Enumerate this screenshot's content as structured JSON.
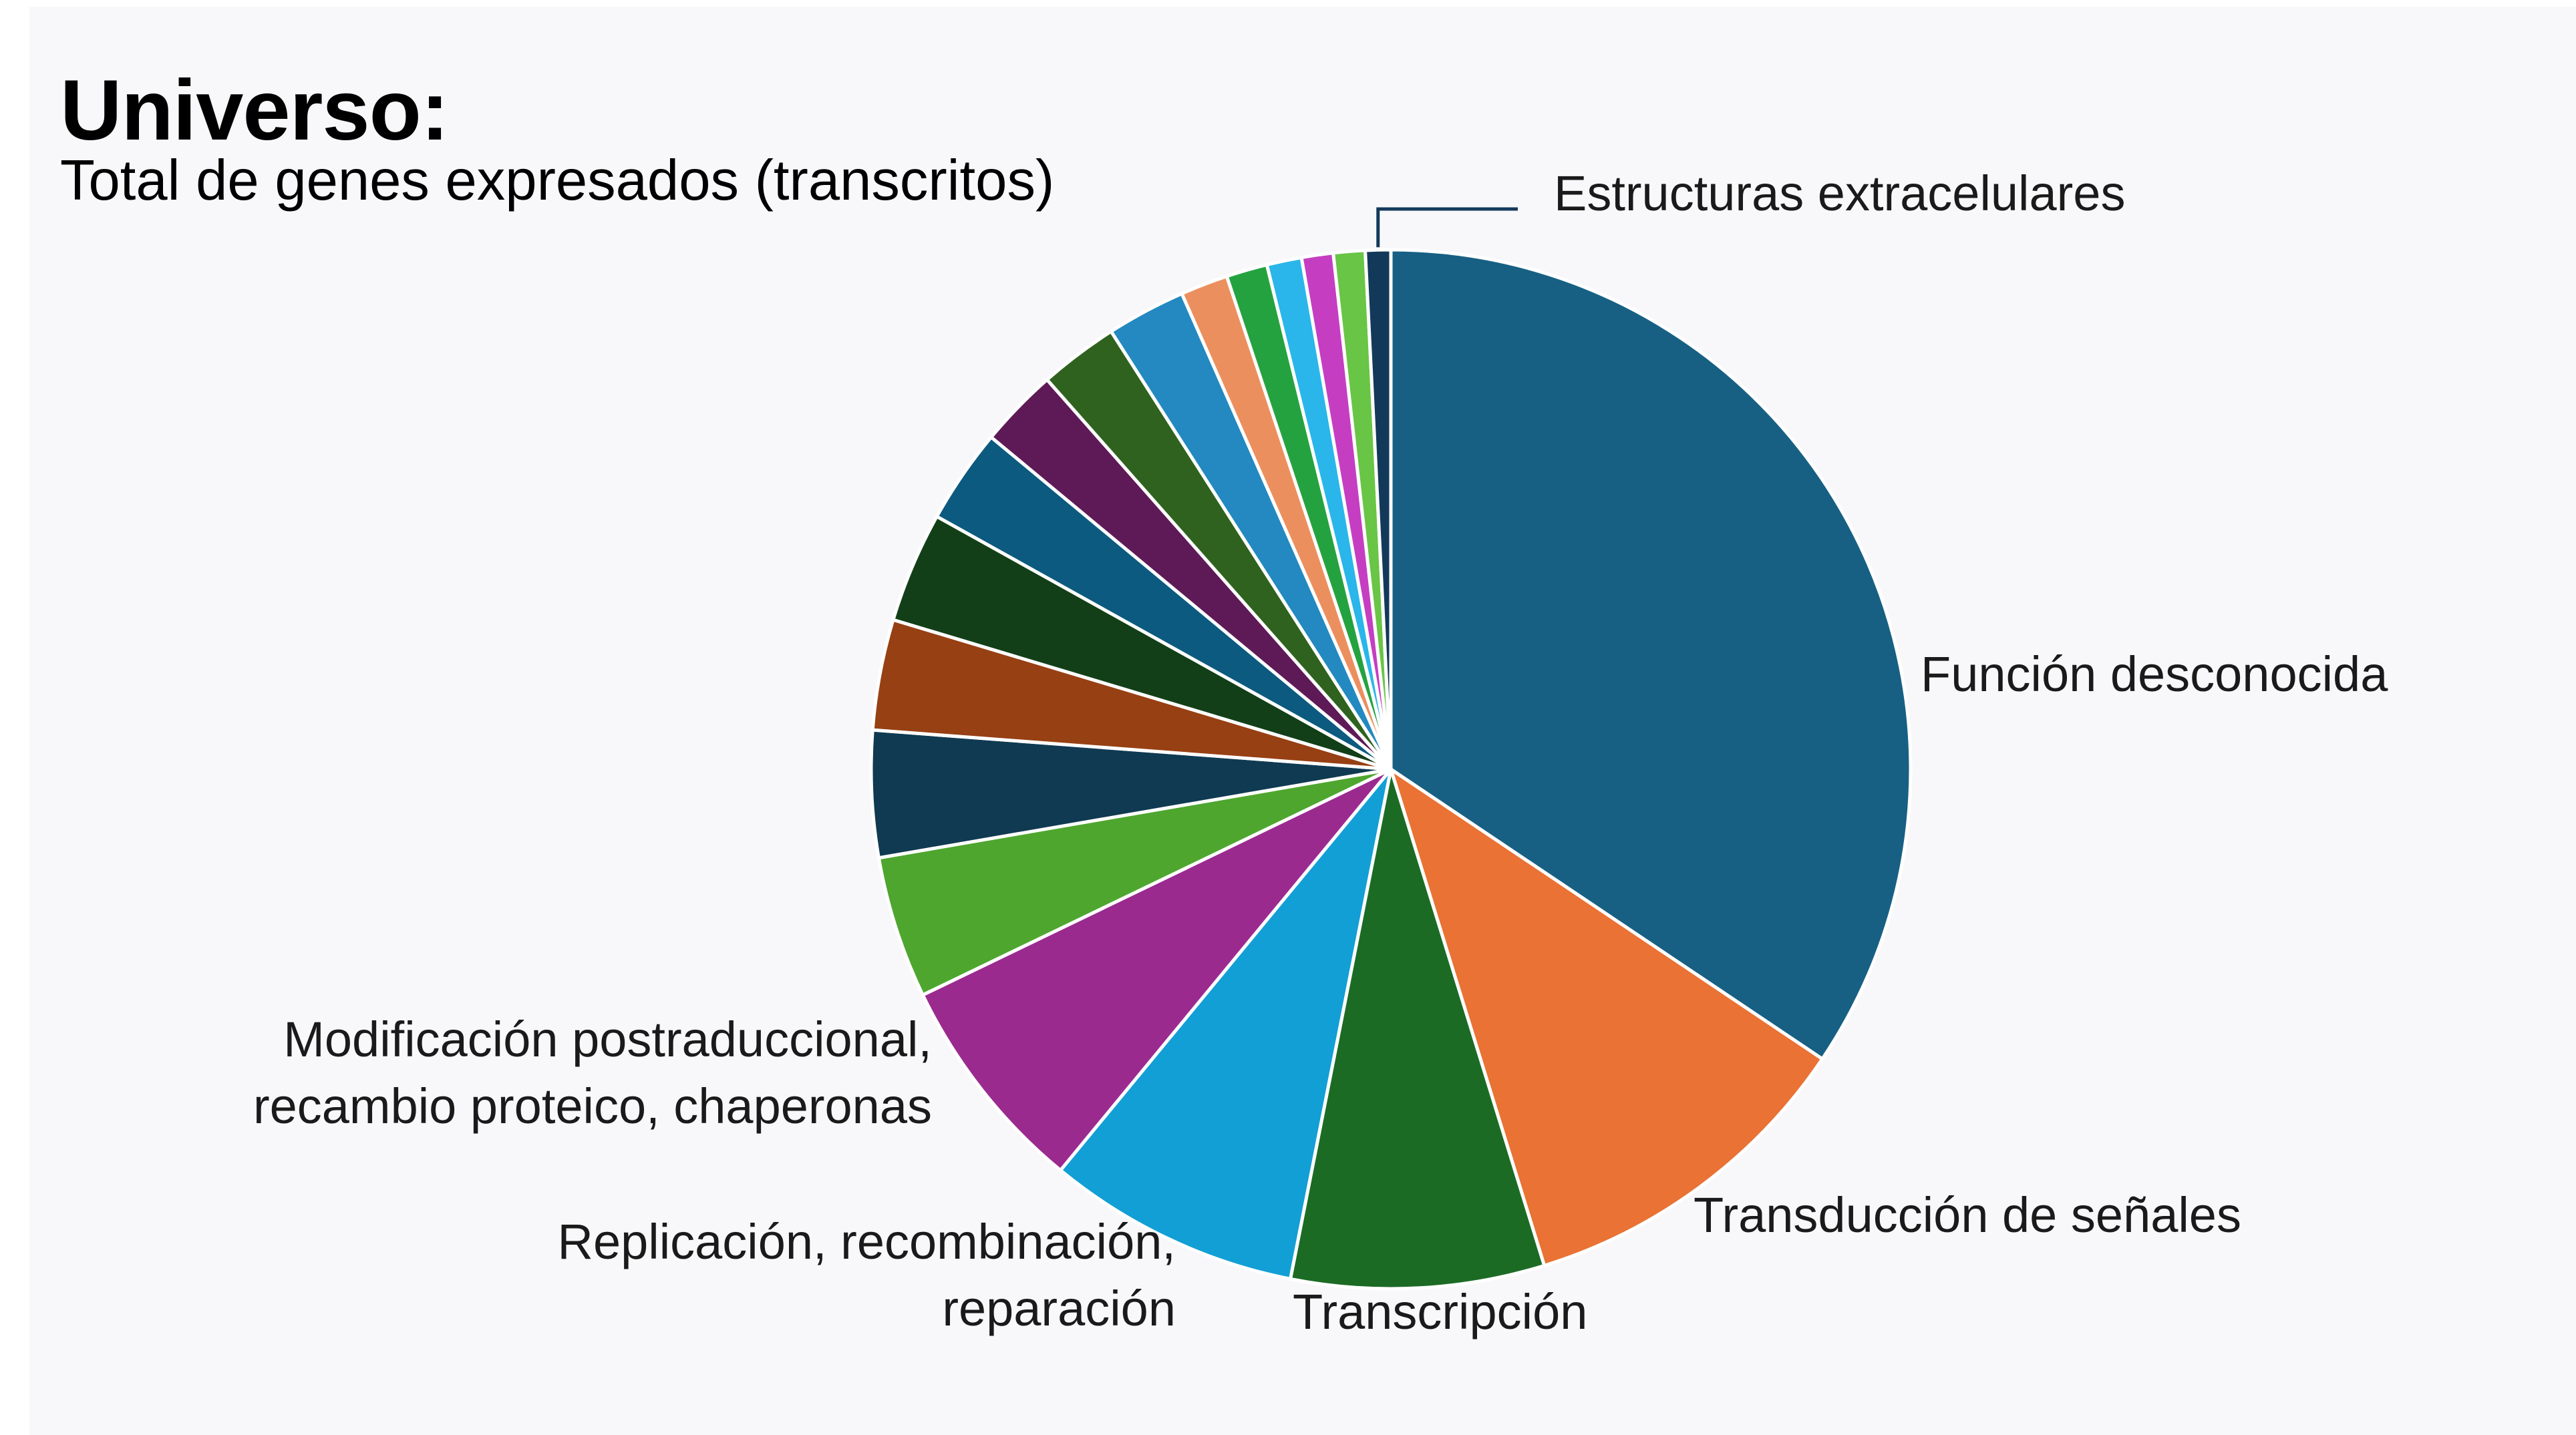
{
  "header": {
    "title": "Universo:",
    "subtitle": "Total de genes expresados (transcritos)"
  },
  "chart_data": {
    "type": "pie",
    "title": "Universo:",
    "subtitle": "Total de genes expresados (transcritos)",
    "start": "12 o'clock",
    "direction": "clockwise",
    "legend": "none",
    "slices": [
      {
        "label": "Función desconocida",
        "value": 35.0,
        "color": "#176083"
      },
      {
        "label": "Transducción de señales",
        "value": 11.0,
        "color": "#e97234"
      },
      {
        "label": "Transcripción",
        "value": 8.0,
        "color": "#1c6b25"
      },
      {
        "label": "Replicación, recombinación, reparación",
        "value": 8.0,
        "color": "#129fd5"
      },
      {
        "label": "Modificación postraduccional, recambio proteico, chaperonas",
        "value": 7.0,
        "color": "#9b2a8f"
      },
      {
        "label": "",
        "value": 4.5,
        "color": "#4ea62f"
      },
      {
        "label": "",
        "value": 4.0,
        "color": "#0f3a52"
      },
      {
        "label": "",
        "value": 3.5,
        "color": "#974013"
      },
      {
        "label": "",
        "value": 3.5,
        "color": "#123f18"
      },
      {
        "label": "",
        "value": 3.0,
        "color": "#0c5a7f"
      },
      {
        "label": "",
        "value": 2.5,
        "color": "#5e1a56"
      },
      {
        "label": "",
        "value": 2.5,
        "color": "#2f621e"
      },
      {
        "label": "",
        "value": 2.5,
        "color": "#2389c0"
      },
      {
        "label": "",
        "value": 1.5,
        "color": "#ec8f5e"
      },
      {
        "label": "",
        "value": 1.3,
        "color": "#25a240"
      },
      {
        "label": "",
        "value": 1.1,
        "color": "#2ab6ea"
      },
      {
        "label": "",
        "value": 1.0,
        "color": "#c53ec2"
      },
      {
        "label": "",
        "value": 1.0,
        "color": "#69c545"
      },
      {
        "label": "Estructuras extracelulares",
        "value": 0.8,
        "color": "#13395a"
      }
    ]
  }
}
